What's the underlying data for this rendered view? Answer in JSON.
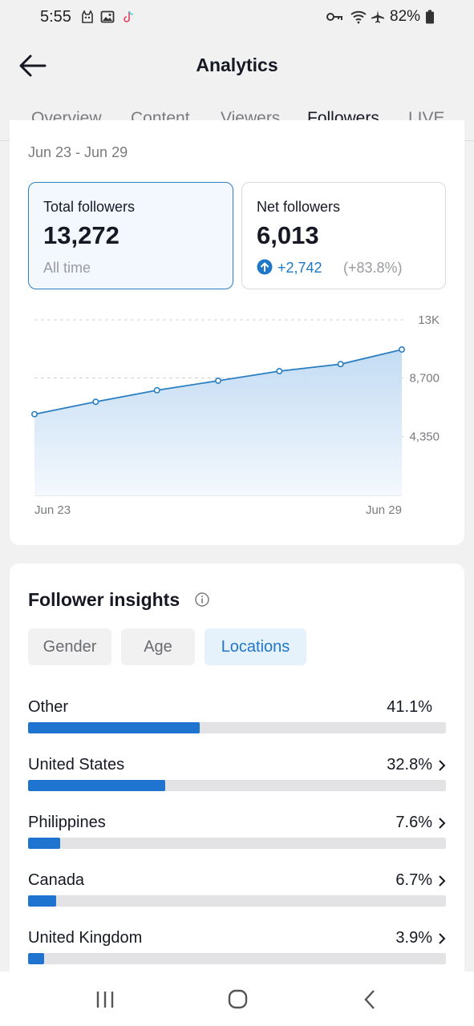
{
  "status_bar": {
    "time": "5:55",
    "battery": "82%",
    "icons": [
      "cat-icon",
      "gallery-icon",
      "tiktok-icon",
      "key-icon",
      "wifi-icon",
      "airplane-icon",
      "battery-icon"
    ]
  },
  "header": {
    "title": "Analytics",
    "tabs": [
      {
        "label": "Overview"
      },
      {
        "label": "Content"
      },
      {
        "label": "Viewers"
      },
      {
        "label": "Followers"
      },
      {
        "label": "LIVE"
      }
    ],
    "active_tab": "Followers"
  },
  "summary": {
    "date_range": "Jun 23 - Jun 29",
    "total": {
      "label": "Total followers",
      "value": "13,272",
      "sub": "All time"
    },
    "net": {
      "label": "Net followers",
      "value": "6,013",
      "change": "+2,742",
      "change_pct": "(+83.8%)"
    }
  },
  "chart_data": {
    "type": "area",
    "x": [
      "Jun 23",
      "Jun 24",
      "Jun 25",
      "Jun 26",
      "Jun 27",
      "Jun 28",
      "Jun 29"
    ],
    "x_tick_labels": [
      "Jun 23",
      "Jun 29"
    ],
    "values": [
      6013,
      6930,
      7780,
      8490,
      9200,
      9720,
      10800
    ],
    "y_ticks": [
      {
        "value": 13000,
        "label": "13K"
      },
      {
        "value": 8700,
        "label": "8,700"
      },
      {
        "value": 4350,
        "label": "4,350"
      }
    ],
    "ylim": [
      0,
      13000
    ],
    "grid": true,
    "colors": {
      "line": "#2b7fc2",
      "fill": "#cfe4f7"
    }
  },
  "insights": {
    "title": "Follower insights",
    "chips": [
      {
        "label": "Gender"
      },
      {
        "label": "Age"
      },
      {
        "label": "Locations"
      }
    ],
    "active_chip": "Locations",
    "locations": [
      {
        "name": "Other",
        "pct": "41.1%",
        "value": 41.1,
        "chevron": false
      },
      {
        "name": "United States",
        "pct": "32.8%",
        "value": 32.8,
        "chevron": true
      },
      {
        "name": "Philippines",
        "pct": "7.6%",
        "value": 7.6,
        "chevron": true
      },
      {
        "name": "Canada",
        "pct": "6.7%",
        "value": 6.7,
        "chevron": true
      },
      {
        "name": "United Kingdom",
        "pct": "3.9%",
        "value": 3.9,
        "chevron": true
      }
    ]
  },
  "colors": {
    "accent": "#1f74cf",
    "text": "#161823",
    "muted": "#7a7b80"
  }
}
